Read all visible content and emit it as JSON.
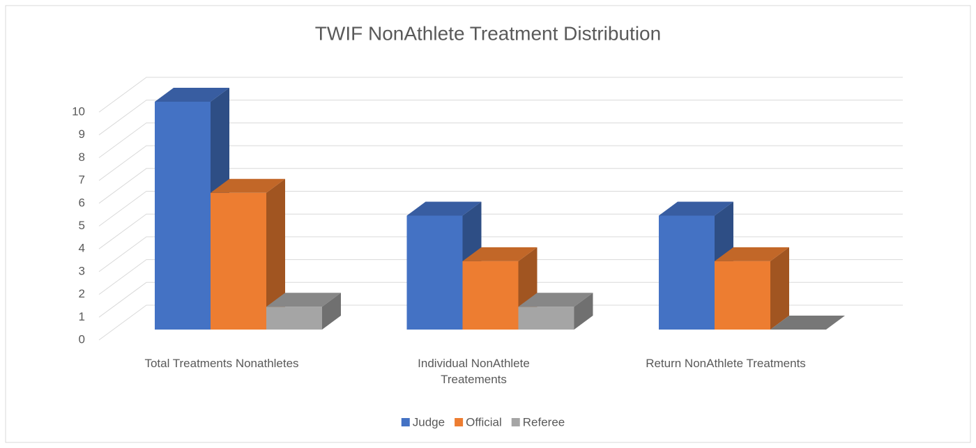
{
  "chart_data": {
    "type": "bar3d",
    "title": "TWIF NonAthlete Treatment Distribution",
    "categories": [
      "Total Treatments Nonathletes",
      "Individual NonAthlete Treatements",
      "Return NonAthlete Treatments"
    ],
    "series": [
      {
        "name": "Judge",
        "color": "#4472c4",
        "values": [
          10,
          5,
          5
        ]
      },
      {
        "name": "Official",
        "color": "#ed7d31",
        "values": [
          6,
          3,
          3
        ]
      },
      {
        "name": "Referee",
        "color": "#a5a5a5",
        "values": [
          1,
          1,
          0
        ]
      }
    ],
    "ylim": [
      0,
      10
    ],
    "yticks": [
      0,
      1,
      2,
      3,
      4,
      5,
      6,
      7,
      8,
      9,
      10
    ],
    "grid": true,
    "legend": "bottom"
  }
}
